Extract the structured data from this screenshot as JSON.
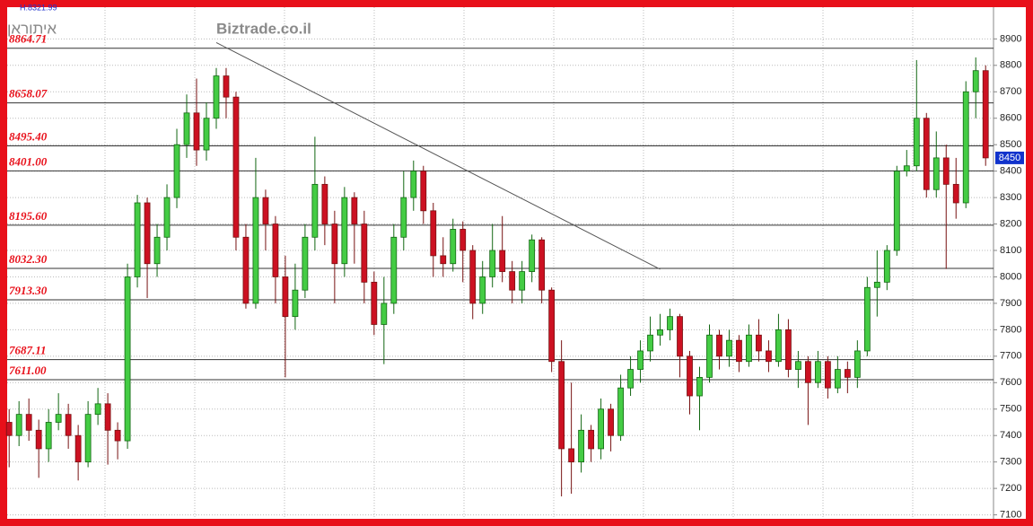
{
  "chart_data": {
    "type": "candlestick",
    "title": "איתוראן",
    "subtitle": "H:8321.99",
    "watermark": "Biztrade.co.il",
    "open": [
      7450,
      7400,
      7480,
      7420,
      7350,
      7450,
      7480,
      7400,
      7300,
      7480,
      7520,
      7420,
      7380,
      8000,
      8280,
      8050,
      8150,
      8300,
      8500,
      8620,
      8480,
      8600,
      8760,
      8680,
      8150,
      7900,
      8300,
      8200,
      8000,
      7850,
      7950,
      8150,
      8350,
      8200,
      8050,
      8300,
      8200,
      7980,
      7820,
      7900,
      8150,
      8300,
      8400,
      8250,
      8080,
      8050,
      8180,
      8100,
      7900,
      8000,
      8100,
      8020,
      7950,
      8020,
      8140,
      7950,
      7680,
      7350,
      7300,
      7420,
      7350,
      7500,
      7400,
      7580,
      7650,
      7720,
      7780,
      7800,
      7850,
      7700,
      7550,
      7620,
      7780,
      7700,
      7760,
      7680,
      7780,
      7720,
      7680,
      7800,
      7650,
      7680,
      7600,
      7680,
      7580,
      7650,
      7620,
      7720,
      7960,
      7980,
      8100,
      8400,
      8420,
      8600,
      8330,
      8450,
      8350,
      8280,
      8700,
      8780
    ],
    "high": [
      7500,
      7530,
      7540,
      7460,
      7500,
      7560,
      7520,
      7440,
      7530,
      7580,
      7560,
      7450,
      8050,
      8310,
      8300,
      8200,
      8350,
      8560,
      8690,
      8750,
      8660,
      8790,
      8790,
      8700,
      8200,
      8450,
      8330,
      8230,
      8080,
      8050,
      8200,
      8530,
      8380,
      8250,
      8340,
      8320,
      8250,
      8020,
      8000,
      8200,
      8400,
      8440,
      8420,
      8280,
      8150,
      8220,
      8210,
      8120,
      8060,
      8200,
      8230,
      8060,
      8060,
      8160,
      8150,
      7960,
      7760,
      7600,
      7480,
      7440,
      7540,
      7520,
      7630,
      7700,
      7760,
      7850,
      7860,
      7880,
      7860,
      7720,
      7660,
      7820,
      7800,
      7800,
      7780,
      7820,
      7840,
      7760,
      7860,
      7840,
      7720,
      7700,
      7720,
      7700,
      7700,
      7680,
      7760,
      8000,
      8100,
      8120,
      8420,
      8480,
      8820,
      8620,
      8550,
      8500,
      8450,
      8740,
      8830,
      8800
    ],
    "low": [
      7280,
      7360,
      7380,
      7240,
      7300,
      7420,
      7350,
      7230,
      7280,
      7440,
      7290,
      7310,
      7350,
      7960,
      7920,
      8000,
      8100,
      8260,
      8450,
      8420,
      8440,
      8560,
      8600,
      8100,
      7880,
      7880,
      8100,
      7900,
      7620,
      7800,
      7920,
      8100,
      8120,
      7900,
      8000,
      8050,
      7900,
      7780,
      7670,
      7860,
      8100,
      8250,
      8200,
      8000,
      8000,
      8020,
      7980,
      7840,
      7860,
      7960,
      7980,
      7900,
      7900,
      7980,
      7900,
      7640,
      7170,
      7180,
      7260,
      7300,
      7310,
      7340,
      7380,
      7550,
      7600,
      7680,
      7740,
      7760,
      7620,
      7480,
      7420,
      7600,
      7650,
      7660,
      7640,
      7660,
      7680,
      7640,
      7660,
      7620,
      7580,
      7440,
      7580,
      7540,
      7560,
      7560,
      7580,
      7700,
      7850,
      7950,
      8080,
      8380,
      8400,
      8300,
      8300,
      8030,
      8220,
      8260,
      8600,
      8420
    ],
    "close": [
      7400,
      7480,
      7420,
      7350,
      7450,
      7480,
      7400,
      7300,
      7480,
      7520,
      7420,
      7380,
      8000,
      8280,
      8050,
      8150,
      8300,
      8500,
      8620,
      8480,
      8600,
      8760,
      8680,
      8150,
      7900,
      8300,
      8200,
      8000,
      7850,
      7950,
      8150,
      8350,
      8200,
      8050,
      8300,
      8200,
      7980,
      7820,
      7900,
      8150,
      8300,
      8400,
      8250,
      8080,
      8050,
      8180,
      8100,
      7900,
      8000,
      8100,
      8020,
      7950,
      8020,
      8140,
      7950,
      7680,
      7350,
      7300,
      7420,
      7350,
      7500,
      7400,
      7580,
      7650,
      7720,
      7780,
      7800,
      7850,
      7700,
      7550,
      7620,
      7780,
      7700,
      7760,
      7680,
      7780,
      7720,
      7680,
      7800,
      7650,
      7680,
      7600,
      7680,
      7580,
      7650,
      7620,
      7720,
      7960,
      7980,
      8100,
      8400,
      8420,
      8600,
      8330,
      8450,
      8350,
      8280,
      8700,
      8780,
      8450
    ],
    "up_color": "#44cc44",
    "down_color": "#cc1122",
    "ylim": [
      7085,
      9020
    ],
    "yticks": [
      7100,
      7200,
      7300,
      7400,
      7500,
      7600,
      7700,
      7800,
      7900,
      8000,
      8100,
      8200,
      8300,
      8400,
      8500,
      8600,
      8700,
      8800,
      8900
    ],
    "grid": true,
    "levels": [
      {
        "value": 8864.71,
        "label": "8864.71"
      },
      {
        "value": 8658.07,
        "label": "8658.07"
      },
      {
        "value": 8495.4,
        "label": "8495.40"
      },
      {
        "value": 8401.0,
        "label": "8401.00"
      },
      {
        "value": 8195.6,
        "label": "8195.60"
      },
      {
        "value": 8032.3,
        "label": "8032.30"
      },
      {
        "value": 7913.3,
        "label": "7913.30"
      },
      {
        "value": 7687.11,
        "label": "7687.11"
      },
      {
        "value": 7611.0,
        "label": "7611.00"
      }
    ],
    "last_price": 8450,
    "trendline": {
      "x": [
        21,
        66
      ],
      "values": [
        8886,
        8029
      ]
    }
  }
}
